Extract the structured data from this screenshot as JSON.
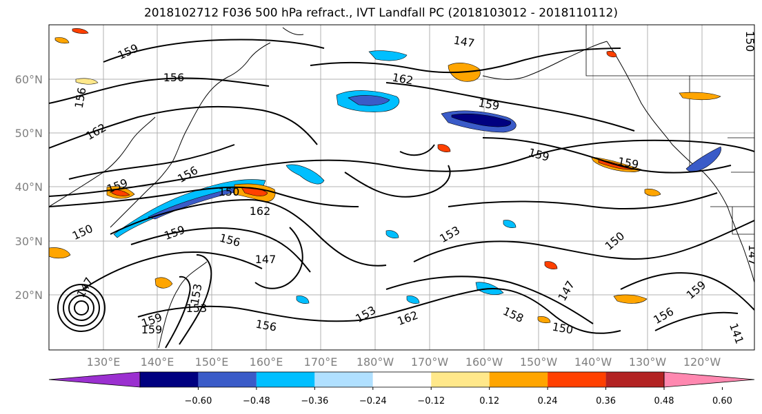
{
  "title": "2018102712 F036 500 hPa refract., IVT Landfall PC (2018103012 - 2018110112)",
  "lat_labels": [
    "60°N",
    "50°N",
    "40°N",
    "30°N",
    "20°N"
  ],
  "lon_labels": [
    "130°E",
    "140°E",
    "150°E",
    "160°E",
    "170°E",
    "180°W",
    "170°W",
    "160°W",
    "150°W",
    "140°W",
    "130°W",
    "120°W"
  ],
  "colorbar": {
    "colors": [
      "#9b30d0",
      "#000080",
      "#3a5bc8",
      "#00bfff",
      "#b0e0ff",
      "#ffffff",
      "#ffe88a",
      "#ffa500",
      "#ff4000",
      "#b22222",
      "#ff88b0"
    ],
    "tick_labels": [
      "−0.60",
      "−0.48",
      "−0.36",
      "−0.24",
      "−0.12",
      "0.12",
      "0.24",
      "0.36",
      "0.48",
      "0.60"
    ]
  },
  "contour_labels": [
    "159",
    "156",
    "156",
    "162",
    "159",
    "156",
    "150",
    "162",
    "150",
    "159",
    "156",
    "147",
    "153",
    "153",
    "159",
    "159",
    "156",
    "153",
    "162",
    "158",
    "150",
    "147",
    "150",
    "159",
    "156",
    "159",
    "162",
    "159",
    "153",
    "147",
    "141",
    "150",
    "147",
    "147",
    "159"
  ]
}
